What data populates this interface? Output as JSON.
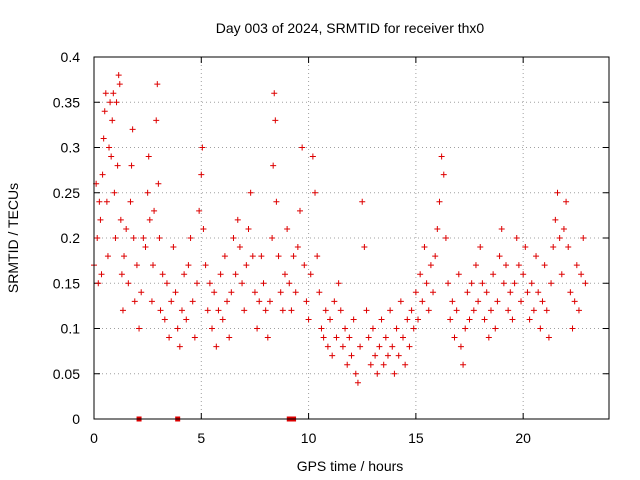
{
  "chart_data": {
    "type": "scatter",
    "title": "Day 003 of 2024, SRMTID for receiver thx0",
    "xlabel": "GPS time / hours",
    "ylabel": "SRMTID / TECUs",
    "xlim": [
      0,
      24
    ],
    "ylim": [
      0,
      0.4
    ],
    "xticks": [
      0,
      5,
      10,
      15,
      20
    ],
    "xtick_labels": [
      "0",
      "5",
      "10",
      "15",
      "20"
    ],
    "yticks": [
      0,
      0.05,
      0.1,
      0.15,
      0.2,
      0.25,
      0.3,
      0.35,
      0.4
    ],
    "ytick_labels": [
      "0",
      "0.05",
      "0.1",
      "0.15",
      "0.2",
      "0.25",
      "0.3",
      "0.35",
      "0.4"
    ],
    "grid": true,
    "marker": "plus",
    "color": "#dd0000",
    "series": [
      {
        "name": "SRMTID",
        "points": [
          [
            0.0,
            0.17
          ],
          [
            0.1,
            0.26
          ],
          [
            0.15,
            0.2
          ],
          [
            0.2,
            0.15
          ],
          [
            0.25,
            0.24
          ],
          [
            0.3,
            0.22
          ],
          [
            0.35,
            0.16
          ],
          [
            0.4,
            0.27
          ],
          [
            0.45,
            0.31
          ],
          [
            0.5,
            0.34
          ],
          [
            0.55,
            0.36
          ],
          [
            0.6,
            0.24
          ],
          [
            0.65,
            0.18
          ],
          [
            0.7,
            0.3
          ],
          [
            0.75,
            0.35
          ],
          [
            0.8,
            0.29
          ],
          [
            0.85,
            0.33
          ],
          [
            0.9,
            0.36
          ],
          [
            0.95,
            0.25
          ],
          [
            1.0,
            0.2
          ],
          [
            1.05,
            0.35
          ],
          [
            1.1,
            0.28
          ],
          [
            1.15,
            0.38
          ],
          [
            1.2,
            0.37
          ],
          [
            1.25,
            0.22
          ],
          [
            1.3,
            0.16
          ],
          [
            1.35,
            0.12
          ],
          [
            1.4,
            0.18
          ],
          [
            1.5,
            0.21
          ],
          [
            1.6,
            0.15
          ],
          [
            1.7,
            0.24
          ],
          [
            1.75,
            0.28
          ],
          [
            1.8,
            0.32
          ],
          [
            1.85,
            0.2
          ],
          [
            1.9,
            0.13
          ],
          [
            2.0,
            0.17
          ],
          [
            2.1,
            0.1
          ],
          [
            2.2,
            0.14
          ],
          [
            2.3,
            0.2
          ],
          [
            2.4,
            0.19
          ],
          [
            2.5,
            0.25
          ],
          [
            2.55,
            0.29
          ],
          [
            2.6,
            0.22
          ],
          [
            2.7,
            0.13
          ],
          [
            2.75,
            0.17
          ],
          [
            2.8,
            0.23
          ],
          [
            2.9,
            0.33
          ],
          [
            2.95,
            0.37
          ],
          [
            3.0,
            0.26
          ],
          [
            3.05,
            0.2
          ],
          [
            3.1,
            0.12
          ],
          [
            3.2,
            0.16
          ],
          [
            3.3,
            0.11
          ],
          [
            3.4,
            0.15
          ],
          [
            3.5,
            0.09
          ],
          [
            3.6,
            0.13
          ],
          [
            3.7,
            0.19
          ],
          [
            3.8,
            0.14
          ],
          [
            3.9,
            0.1
          ],
          [
            4.0,
            0.08
          ],
          [
            4.1,
            0.12
          ],
          [
            4.2,
            0.16
          ],
          [
            4.3,
            0.11
          ],
          [
            4.4,
            0.17
          ],
          [
            4.5,
            0.2
          ],
          [
            4.6,
            0.13
          ],
          [
            4.7,
            0.09
          ],
          [
            4.8,
            0.15
          ],
          [
            4.9,
            0.23
          ],
          [
            5.0,
            0.27
          ],
          [
            5.05,
            0.3
          ],
          [
            5.1,
            0.21
          ],
          [
            5.2,
            0.17
          ],
          [
            5.3,
            0.12
          ],
          [
            5.4,
            0.15
          ],
          [
            5.5,
            0.1
          ],
          [
            5.6,
            0.14
          ],
          [
            5.7,
            0.08
          ],
          [
            5.8,
            0.12
          ],
          [
            5.9,
            0.16
          ],
          [
            6.0,
            0.11
          ],
          [
            6.1,
            0.18
          ],
          [
            6.2,
            0.13
          ],
          [
            6.3,
            0.09
          ],
          [
            6.4,
            0.14
          ],
          [
            6.5,
            0.2
          ],
          [
            6.6,
            0.16
          ],
          [
            6.7,
            0.22
          ],
          [
            6.8,
            0.19
          ],
          [
            6.9,
            0.15
          ],
          [
            7.0,
            0.12
          ],
          [
            7.1,
            0.17
          ],
          [
            7.2,
            0.21
          ],
          [
            7.3,
            0.25
          ],
          [
            7.4,
            0.18
          ],
          [
            7.5,
            0.14
          ],
          [
            7.6,
            0.1
          ],
          [
            7.7,
            0.13
          ],
          [
            7.8,
            0.18
          ],
          [
            7.9,
            0.15
          ],
          [
            8.0,
            0.12
          ],
          [
            8.1,
            0.09
          ],
          [
            8.2,
            0.13
          ],
          [
            8.3,
            0.2
          ],
          [
            8.35,
            0.28
          ],
          [
            8.4,
            0.36
          ],
          [
            8.45,
            0.33
          ],
          [
            8.5,
            0.24
          ],
          [
            8.6,
            0.18
          ],
          [
            8.7,
            0.14
          ],
          [
            8.8,
            0.12
          ],
          [
            8.9,
            0.16
          ],
          [
            9.0,
            0.21
          ],
          [
            9.1,
            0.15
          ],
          [
            9.2,
            0.12
          ],
          [
            9.3,
            0.18
          ],
          [
            9.4,
            0.14
          ],
          [
            9.5,
            0.19
          ],
          [
            9.6,
            0.23
          ],
          [
            9.7,
            0.3
          ],
          [
            9.8,
            0.17
          ],
          [
            9.9,
            0.13
          ],
          [
            10.0,
            0.11
          ],
          [
            10.1,
            0.16
          ],
          [
            10.2,
            0.29
          ],
          [
            10.3,
            0.25
          ],
          [
            10.4,
            0.18
          ],
          [
            10.5,
            0.14
          ],
          [
            10.6,
            0.1
          ],
          [
            10.7,
            0.09
          ],
          [
            10.8,
            0.12
          ],
          [
            10.9,
            0.08
          ],
          [
            11.0,
            0.11
          ],
          [
            11.1,
            0.07
          ],
          [
            11.2,
            0.13
          ],
          [
            11.3,
            0.09
          ],
          [
            11.4,
            0.15
          ],
          [
            11.5,
            0.12
          ],
          [
            11.6,
            0.08
          ],
          [
            11.7,
            0.1
          ],
          [
            11.8,
            0.06
          ],
          [
            11.9,
            0.09
          ],
          [
            12.0,
            0.07
          ],
          [
            12.1,
            0.11
          ],
          [
            12.2,
            0.05
          ],
          [
            12.3,
            0.04
          ],
          [
            12.4,
            0.08
          ],
          [
            12.5,
            0.24
          ],
          [
            12.6,
            0.19
          ],
          [
            12.7,
            0.12
          ],
          [
            12.8,
            0.09
          ],
          [
            12.9,
            0.06
          ],
          [
            13.0,
            0.1
          ],
          [
            13.1,
            0.07
          ],
          [
            13.2,
            0.05
          ],
          [
            13.3,
            0.08
          ],
          [
            13.4,
            0.11
          ],
          [
            13.5,
            0.06
          ],
          [
            13.6,
            0.09
          ],
          [
            13.7,
            0.07
          ],
          [
            13.8,
            0.12
          ],
          [
            13.9,
            0.08
          ],
          [
            14.0,
            0.05
          ],
          [
            14.1,
            0.1
          ],
          [
            14.2,
            0.07
          ],
          [
            14.3,
            0.13
          ],
          [
            14.4,
            0.09
          ],
          [
            14.5,
            0.06
          ],
          [
            14.6,
            0.11
          ],
          [
            14.7,
            0.08
          ],
          [
            14.8,
            0.12
          ],
          [
            14.9,
            0.1
          ],
          [
            15.0,
            0.14
          ],
          [
            15.1,
            0.11
          ],
          [
            15.2,
            0.16
          ],
          [
            15.3,
            0.13
          ],
          [
            15.4,
            0.19
          ],
          [
            15.5,
            0.15
          ],
          [
            15.6,
            0.12
          ],
          [
            15.7,
            0.17
          ],
          [
            15.8,
            0.14
          ],
          [
            15.9,
            0.18
          ],
          [
            16.0,
            0.21
          ],
          [
            16.1,
            0.24
          ],
          [
            16.2,
            0.29
          ],
          [
            16.3,
            0.27
          ],
          [
            16.4,
            0.2
          ],
          [
            16.5,
            0.15
          ],
          [
            16.6,
            0.11
          ],
          [
            16.7,
            0.13
          ],
          [
            16.8,
            0.09
          ],
          [
            16.9,
            0.12
          ],
          [
            17.0,
            0.16
          ],
          [
            17.1,
            0.08
          ],
          [
            17.2,
            0.06
          ],
          [
            17.3,
            0.1
          ],
          [
            17.4,
            0.14
          ],
          [
            17.5,
            0.11
          ],
          [
            17.6,
            0.15
          ],
          [
            17.7,
            0.12
          ],
          [
            17.8,
            0.17
          ],
          [
            17.9,
            0.13
          ],
          [
            18.0,
            0.19
          ],
          [
            18.1,
            0.15
          ],
          [
            18.2,
            0.11
          ],
          [
            18.3,
            0.14
          ],
          [
            18.4,
            0.09
          ],
          [
            18.5,
            0.12
          ],
          [
            18.6,
            0.16
          ],
          [
            18.7,
            0.1
          ],
          [
            18.8,
            0.13
          ],
          [
            18.9,
            0.18
          ],
          [
            19.0,
            0.21
          ],
          [
            19.1,
            0.15
          ],
          [
            19.2,
            0.17
          ],
          [
            19.3,
            0.12
          ],
          [
            19.4,
            0.14
          ],
          [
            19.5,
            0.11
          ],
          [
            19.6,
            0.15
          ],
          [
            19.7,
            0.2
          ],
          [
            19.8,
            0.17
          ],
          [
            19.9,
            0.13
          ],
          [
            20.0,
            0.16
          ],
          [
            20.1,
            0.19
          ],
          [
            20.2,
            0.14
          ],
          [
            20.3,
            0.11
          ],
          [
            20.4,
            0.15
          ],
          [
            20.5,
            0.12
          ],
          [
            20.6,
            0.18
          ],
          [
            20.7,
            0.14
          ],
          [
            20.8,
            0.1
          ],
          [
            20.9,
            0.13
          ],
          [
            21.0,
            0.17
          ],
          [
            21.1,
            0.12
          ],
          [
            21.2,
            0.09
          ],
          [
            21.3,
            0.15
          ],
          [
            21.4,
            0.19
          ],
          [
            21.5,
            0.22
          ],
          [
            21.6,
            0.25
          ],
          [
            21.7,
            0.2
          ],
          [
            21.8,
            0.16
          ],
          [
            21.9,
            0.21
          ],
          [
            22.0,
            0.24
          ],
          [
            22.1,
            0.19
          ],
          [
            22.2,
            0.14
          ],
          [
            22.3,
            0.1
          ],
          [
            22.4,
            0.13
          ],
          [
            22.5,
            0.17
          ],
          [
            22.6,
            0.12
          ],
          [
            22.7,
            0.16
          ],
          [
            22.8,
            0.2
          ],
          [
            22.9,
            0.15
          ]
        ]
      }
    ],
    "gaps": [
      2.1,
      3.9,
      9.1,
      9.3
    ]
  }
}
